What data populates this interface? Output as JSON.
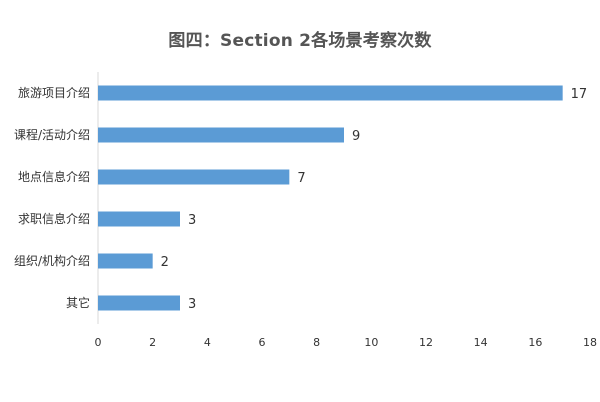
{
  "chart_data": {
    "type": "bar",
    "orientation": "horizontal",
    "title": "图四：Section 2各场景考察次数",
    "xlabel": "",
    "ylabel": "",
    "categories": [
      "旅游项目介绍",
      "课程/活动介绍",
      "地点信息介绍",
      "求职信息介绍",
      "组织/机构介绍",
      "其它"
    ],
    "values": [
      17,
      9,
      7,
      3,
      2,
      3
    ],
    "xlim": [
      0,
      18
    ],
    "xticks": [
      0,
      2,
      4,
      6,
      8,
      10,
      12,
      14,
      16,
      18
    ],
    "grid": false,
    "legend": "none",
    "data_labels": true,
    "bar_color": "#5b9bd5"
  }
}
